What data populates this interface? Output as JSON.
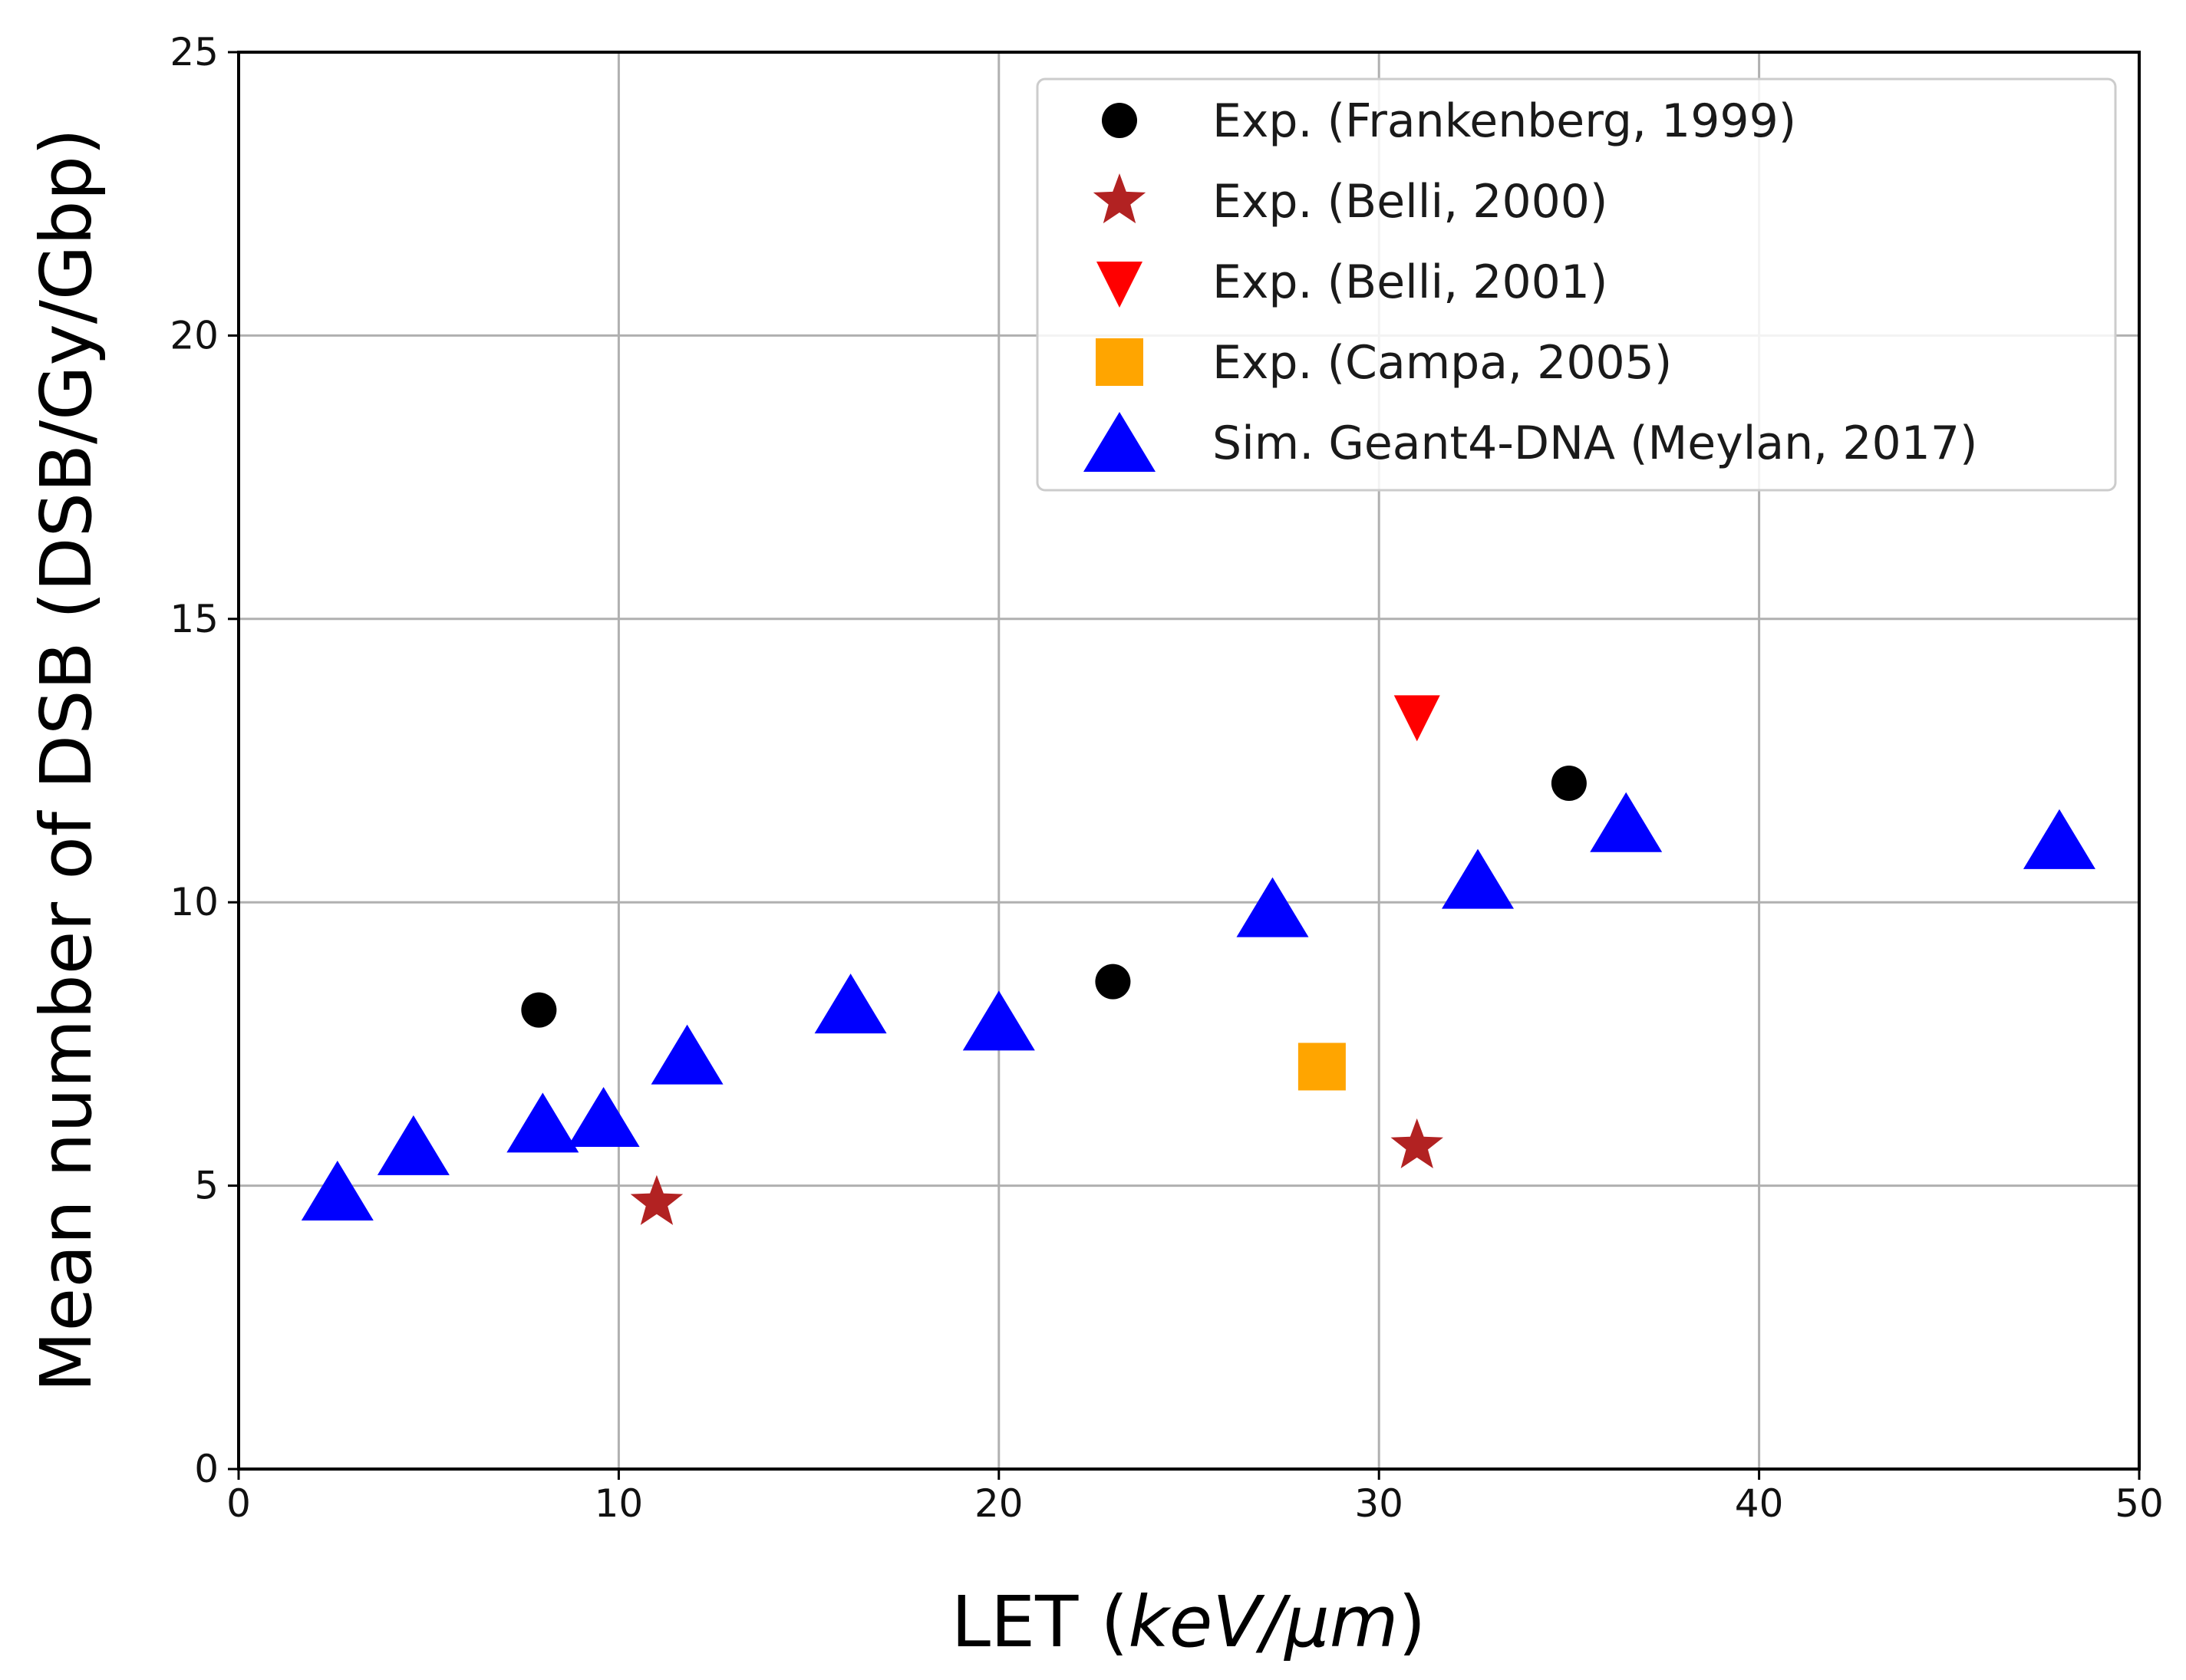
{
  "chart_data": {
    "type": "scatter",
    "title": "",
    "xlabel_prefix": "LET (",
    "xlabel_units": "keV/μm",
    "xlabel_suffix": ")",
    "ylabel": "Mean number of DSB (DSB/Gy/Gbp)",
    "xlim": [
      0,
      50
    ],
    "ylim": [
      0,
      25
    ],
    "xticks": [
      0,
      10,
      20,
      30,
      40,
      50
    ],
    "yticks": [
      0,
      5,
      10,
      15,
      20,
      25
    ],
    "grid": true,
    "legend_position": "top-right",
    "series": [
      {
        "name": "Exp. (Frankenberg, 1999)",
        "marker": "circle",
        "color": "#000000",
        "points": [
          [
            7.9,
            8.1
          ],
          [
            23.0,
            8.6
          ],
          [
            35.0,
            12.1
          ]
        ]
      },
      {
        "name": "Exp. (Belli, 2000)",
        "marker": "star",
        "color": "#b22222",
        "points": [
          [
            11.0,
            4.7
          ],
          [
            31.0,
            5.7
          ]
        ]
      },
      {
        "name": "Exp. (Belli, 2001)",
        "marker": "triangle-down",
        "color": "#ff0000",
        "points": [
          [
            31.0,
            13.3
          ]
        ]
      },
      {
        "name": "Exp. (Campa, 2005)",
        "marker": "square",
        "color": "#ffa500",
        "points": [
          [
            28.5,
            7.1
          ]
        ]
      },
      {
        "name": "Sim. Geant4-DNA (Meylan, 2017)",
        "marker": "triangle-up",
        "color": "#0000ff",
        "points": [
          [
            2.6,
            4.9
          ],
          [
            4.6,
            5.7
          ],
          [
            8.0,
            6.1
          ],
          [
            9.6,
            6.2
          ],
          [
            11.8,
            7.3
          ],
          [
            16.1,
            8.2
          ],
          [
            20.0,
            7.9
          ],
          [
            27.2,
            9.9
          ],
          [
            32.6,
            10.4
          ],
          [
            36.5,
            11.4
          ],
          [
            47.9,
            11.1
          ]
        ]
      }
    ]
  }
}
